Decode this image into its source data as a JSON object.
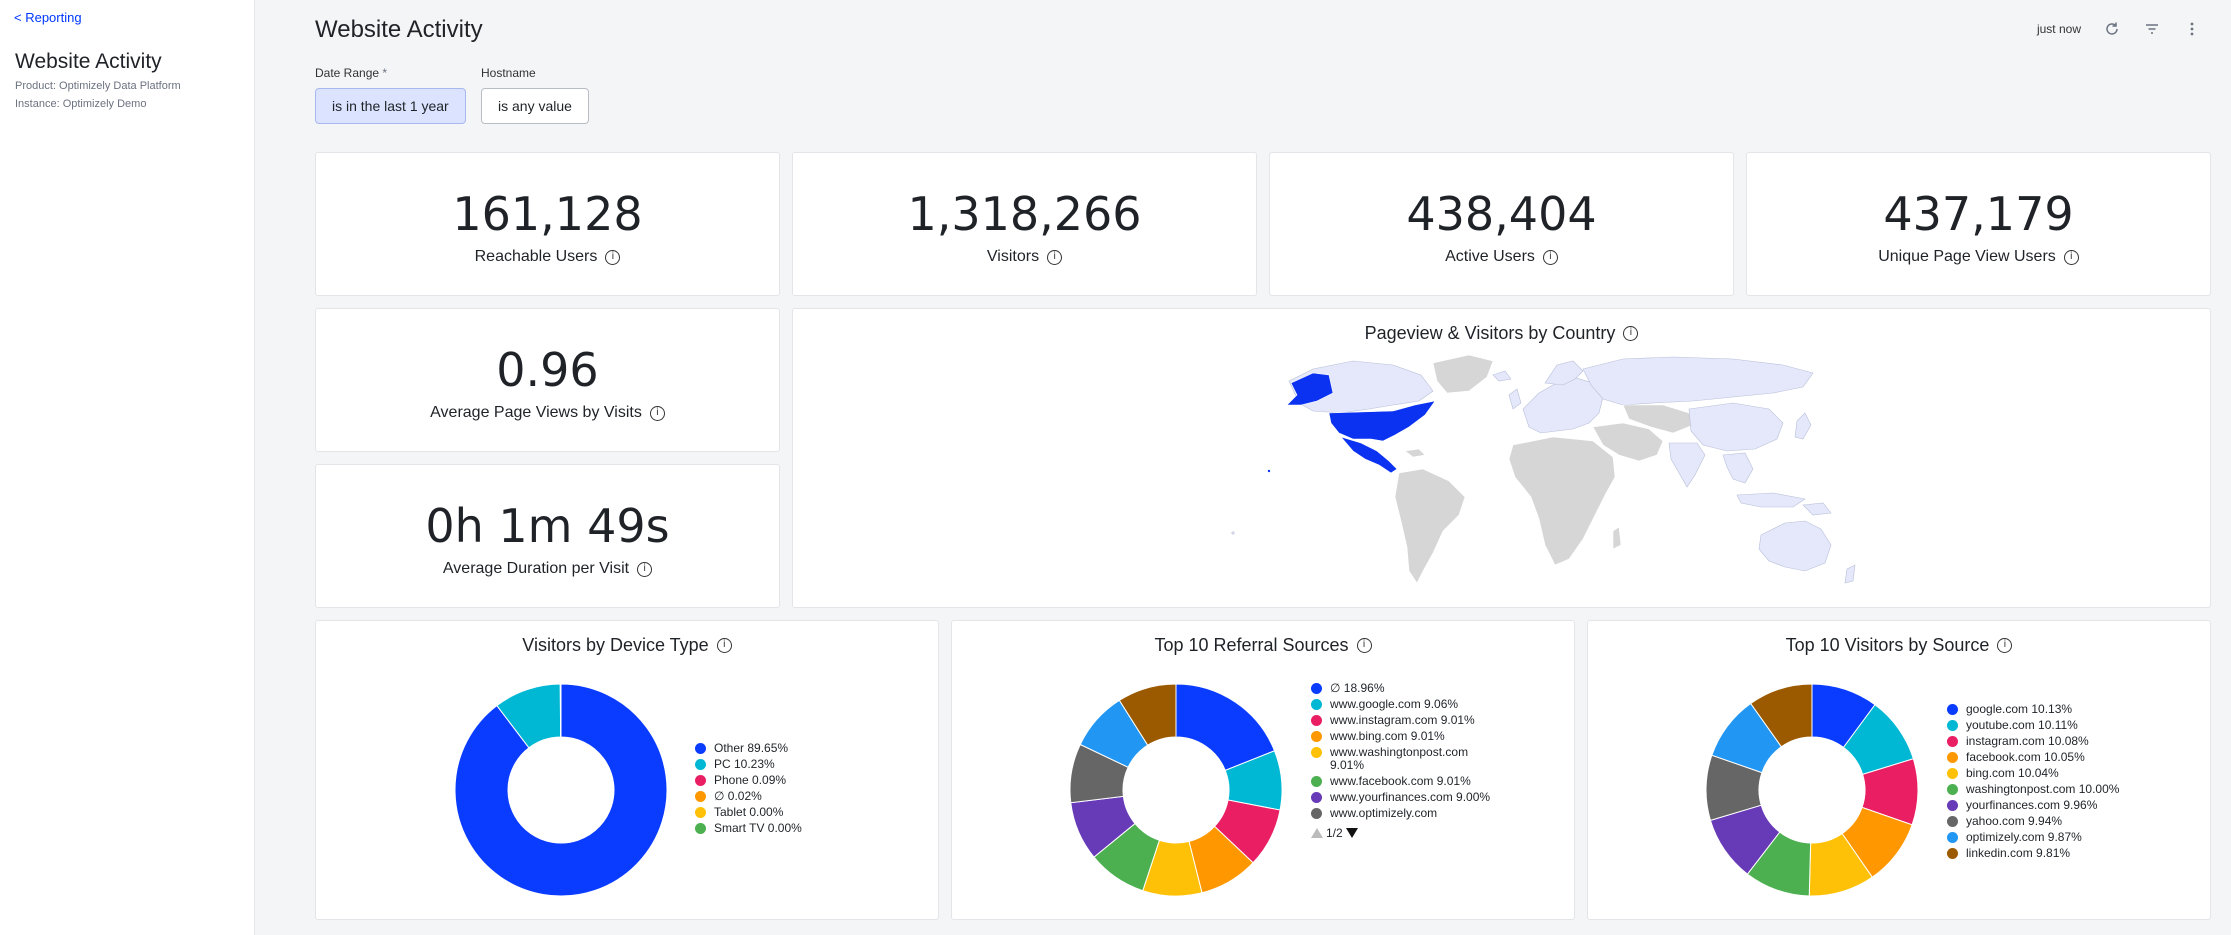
{
  "sidebar": {
    "back_label": "< Reporting",
    "title": "Website Activity",
    "product": "Product: Optimizely Data Platform",
    "instance": "Instance: Optimizely Demo"
  },
  "header": {
    "title": "Website Activity",
    "updated": "just now",
    "icons": [
      "refresh-icon",
      "filter-icon",
      "more-vertical-icon"
    ]
  },
  "filters": {
    "date_range": {
      "label": "Date Range",
      "required": "*",
      "value": "is in the last 1 year"
    },
    "hostname": {
      "label": "Hostname",
      "value": "is any value"
    }
  },
  "kpis": [
    {
      "value": "161,128",
      "label": "Reachable Users"
    },
    {
      "value": "1,318,266",
      "label": "Visitors"
    },
    {
      "value": "438,404",
      "label": "Active Users"
    },
    {
      "value": "437,179",
      "label": "Unique Page View Users"
    },
    {
      "value": "0.96",
      "label": "Average Page Views by Visits"
    },
    {
      "value": "0h 1m 49s",
      "label": "Average Duration per Visit"
    }
  ],
  "map": {
    "title": "Pageview & Visitors by Country",
    "colors": {
      "highlight": "#0a32f0",
      "low": "#e4e8fa",
      "nodata": "#d6d6d6"
    }
  },
  "info_glyph": "i",
  "device_chart": {
    "title": "Visitors by Device Type",
    "legend": [
      {
        "label": "Other 89.65%",
        "value": 89.65,
        "color": "#0a3cff"
      },
      {
        "label": "PC 10.23%",
        "value": 10.23,
        "color": "#00b8d4"
      },
      {
        "label": "Phone 0.09%",
        "value": 0.09,
        "color": "#e91e63"
      },
      {
        "label": "∅ 0.02%",
        "value": 0.02,
        "color": "#ff9800"
      },
      {
        "label": "Tablet 0.00%",
        "value": 0.0,
        "color": "#ffc107"
      },
      {
        "label": "Smart TV 0.00%",
        "value": 0.0,
        "color": "#4caf50"
      }
    ]
  },
  "referral_chart": {
    "title": "Top 10 Referral Sources",
    "legend": [
      {
        "label": "∅ 18.96%",
        "value": 18.96,
        "color": "#0a3cff"
      },
      {
        "label": "www.google.com 9.06%",
        "value": 9.06,
        "color": "#00b8d4"
      },
      {
        "label": "www.instagram.com 9.01%",
        "value": 9.01,
        "color": "#e91e63"
      },
      {
        "label": "www.bing.com 9.01%",
        "value": 9.01,
        "color": "#ff9800"
      },
      {
        "label": "www.washingtonpost.com 9.01%",
        "value": 9.01,
        "color": "#ffc107"
      },
      {
        "label": "www.facebook.com 9.01%",
        "value": 9.01,
        "color": "#4caf50"
      },
      {
        "label": "www.yourfinances.com 9.00%",
        "value": 9.0,
        "color": "#673ab7"
      },
      {
        "label": "www.optimizely.com",
        "value": 8.97,
        "color": "#666666"
      }
    ],
    "hidden_slices": [
      {
        "value": 8.97,
        "color": "#2196f3"
      },
      {
        "value": 8.96,
        "color": "#9c5a00"
      }
    ],
    "pager": "1/2"
  },
  "source_chart": {
    "title": "Top 10 Visitors by Source",
    "legend": [
      {
        "label": "google.com 10.13%",
        "value": 10.13,
        "color": "#0a3cff"
      },
      {
        "label": "youtube.com 10.11%",
        "value": 10.11,
        "color": "#00b8d4"
      },
      {
        "label": "instagram.com 10.08%",
        "value": 10.08,
        "color": "#e91e63"
      },
      {
        "label": "facebook.com 10.05%",
        "value": 10.05,
        "color": "#ff9800"
      },
      {
        "label": "bing.com 10.04%",
        "value": 10.04,
        "color": "#ffc107"
      },
      {
        "label": "washingtonpost.com 10.00%",
        "value": 10.0,
        "color": "#4caf50"
      },
      {
        "label": "yourfinances.com 9.96%",
        "value": 9.96,
        "color": "#673ab7"
      },
      {
        "label": "yahoo.com 9.94%",
        "value": 9.94,
        "color": "#666666"
      },
      {
        "label": "optimizely.com 9.87%",
        "value": 9.87,
        "color": "#2196f3"
      },
      {
        "label": "linkedin.com 9.81%",
        "value": 9.81,
        "color": "#9c5a00"
      }
    ]
  }
}
